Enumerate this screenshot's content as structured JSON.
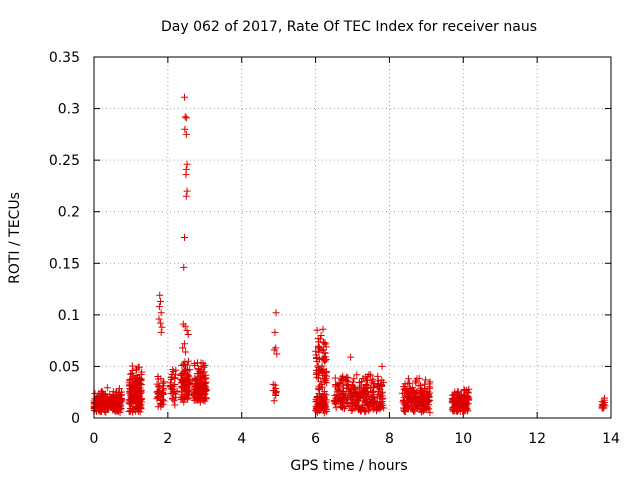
{
  "chart_data": {
    "type": "scatter",
    "title": "Day 062 of 2017, Rate Of TEC Index for receiver naus",
    "xlabel": "GPS time / hours",
    "ylabel": "ROTI / TECUs",
    "xlim": [
      0,
      14
    ],
    "ylim": [
      0,
      0.35
    ],
    "x_ticks": [
      0,
      2,
      4,
      6,
      8,
      10,
      12,
      14
    ],
    "x_tick_labels": [
      "0",
      "2",
      "4",
      "6",
      "8",
      "10",
      "12",
      "14"
    ],
    "y_ticks": [
      0,
      0.05,
      0.1,
      0.15,
      0.2,
      0.25,
      0.3,
      0.35
    ],
    "y_tick_labels": [
      "0",
      "0.05",
      "0.1",
      "0.15",
      "0.2",
      "0.25",
      "0.3",
      "0.35"
    ],
    "grid": true,
    "marker": "+",
    "color": "#dd0000",
    "clusters": [
      {
        "x0": 0.0,
        "x1": 0.75,
        "ymin": 0.005,
        "ymax": 0.03,
        "n": 240
      },
      {
        "x0": 0.95,
        "x1": 1.3,
        "ymin": 0.005,
        "ymax": 0.055,
        "n": 160
      },
      {
        "x0": 1.7,
        "x1": 1.9,
        "ymin": 0.01,
        "ymax": 0.045,
        "n": 40
      },
      {
        "x0": 2.05,
        "x1": 2.25,
        "ymin": 0.01,
        "ymax": 0.058,
        "n": 30
      },
      {
        "x0": 2.35,
        "x1": 2.6,
        "ymin": 0.015,
        "ymax": 0.06,
        "n": 80
      },
      {
        "x0": 2.7,
        "x1": 3.05,
        "ymin": 0.015,
        "ymax": 0.058,
        "n": 130
      },
      {
        "x0": 4.85,
        "x1": 4.95,
        "ymin": 0.015,
        "ymax": 0.035,
        "n": 10
      },
      {
        "x0": 6.0,
        "x1": 6.3,
        "ymin": 0.005,
        "ymax": 0.025,
        "n": 80
      },
      {
        "x0": 6.0,
        "x1": 6.3,
        "ymin": 0.02,
        "ymax": 0.088,
        "n": 70
      },
      {
        "x0": 6.5,
        "x1": 7.85,
        "ymin": 0.005,
        "ymax": 0.045,
        "n": 260
      },
      {
        "x0": 8.35,
        "x1": 9.1,
        "ymin": 0.005,
        "ymax": 0.04,
        "n": 200
      },
      {
        "x0": 9.7,
        "x1": 10.15,
        "ymin": 0.005,
        "ymax": 0.032,
        "n": 120
      },
      {
        "x0": 13.75,
        "x1": 13.85,
        "ymin": 0.008,
        "ymax": 0.022,
        "n": 14
      }
    ],
    "points": [
      [
        2.45,
        0.311
      ],
      [
        2.47,
        0.292
      ],
      [
        2.5,
        0.291
      ],
      [
        2.46,
        0.28
      ],
      [
        2.5,
        0.275
      ],
      [
        2.52,
        0.246
      ],
      [
        2.5,
        0.241
      ],
      [
        2.49,
        0.236
      ],
      [
        2.52,
        0.22
      ],
      [
        2.5,
        0.215
      ],
      [
        2.45,
        0.175
      ],
      [
        2.43,
        0.146
      ],
      [
        1.78,
        0.119
      ],
      [
        1.8,
        0.113
      ],
      [
        1.77,
        0.108
      ],
      [
        1.82,
        0.102
      ],
      [
        1.76,
        0.096
      ],
      [
        1.8,
        0.092
      ],
      [
        1.84,
        0.088
      ],
      [
        1.82,
        0.083
      ],
      [
        2.42,
        0.091
      ],
      [
        2.47,
        0.089
      ],
      [
        2.52,
        0.085
      ],
      [
        2.55,
        0.081
      ],
      [
        2.45,
        0.072
      ],
      [
        2.4,
        0.068
      ],
      [
        2.48,
        0.064
      ],
      [
        4.93,
        0.102
      ],
      [
        4.9,
        0.083
      ],
      [
        4.92,
        0.068
      ],
      [
        4.88,
        0.066
      ],
      [
        4.95,
        0.062
      ],
      [
        6.2,
        0.086
      ],
      [
        6.15,
        0.08
      ],
      [
        6.22,
        0.073
      ],
      [
        6.95,
        0.059
      ],
      [
        7.8,
        0.05
      ],
      [
        9.1,
        0.035
      ]
    ]
  }
}
